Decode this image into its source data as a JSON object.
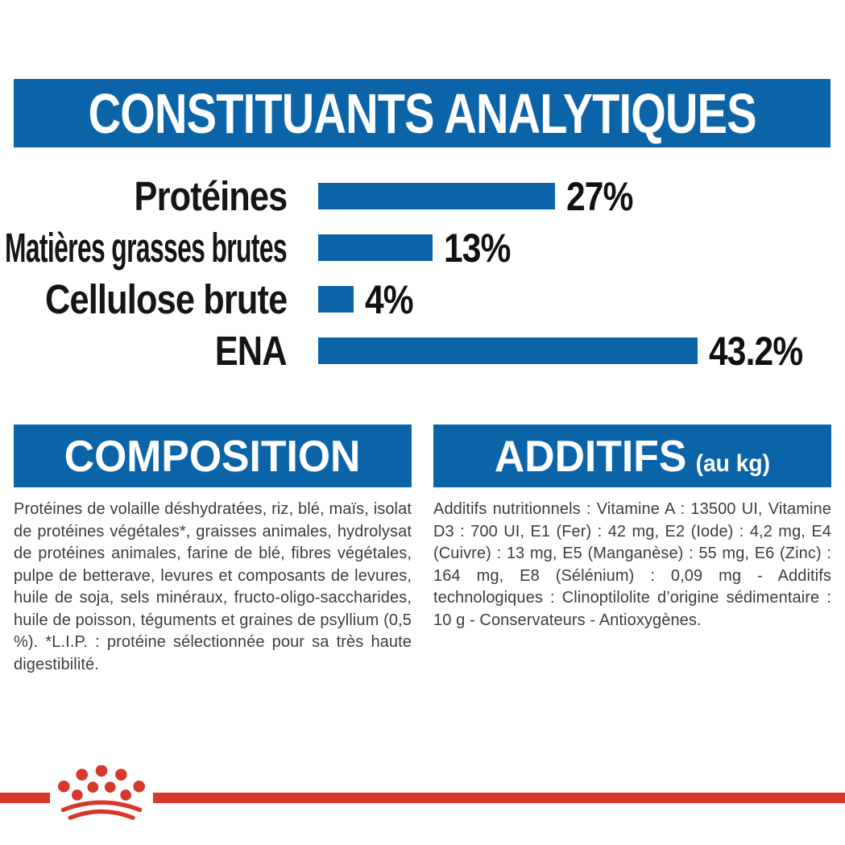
{
  "page": {
    "background": "#ffffff",
    "accent_blue": "#0c64a8",
    "accent_red": "#d7382c",
    "text_color": "#3d3d3d"
  },
  "analytics": {
    "title": "CONSTITUANTS ANALYTIQUES"
  },
  "chart_data": {
    "type": "bar",
    "orientation": "horizontal",
    "title": "CONSTITUANTS ANALYTIQUES",
    "categories": [
      "Protéines",
      "Matières grasses brutes",
      "Cellulose brute",
      "ENA"
    ],
    "values": [
      27,
      13,
      4,
      43.2
    ],
    "value_labels": [
      "27%",
      "13%",
      "4%",
      "43.2%"
    ],
    "unit": "%",
    "xlim": [
      0,
      45
    ],
    "bar_color": "#0c64a8",
    "grid": false,
    "legend": false
  },
  "composition": {
    "title": "COMPOSITION",
    "body": "Protéines de volaille déshydratées, riz, blé, maïs, isolat de protéines végétales*, graisses animales, hydrolysat de protéines animales, farine de blé, fibres végétales, pulpe de betterave, levures et composants de levures, huile de soja, sels minéraux, fructo-oligo-saccharides, huile de poisson, téguments et graines de psyllium (0,5 %). *L.I.P. : protéine sélectionnée pour sa très haute digestibilité."
  },
  "additifs": {
    "title": "ADDITIFS",
    "subtitle": "(au kg)",
    "body": "Additifs nutritionnels : Vitamine A : 13500 UI, Vitamine D3 : 700 UI, E1 (Fer) : 42 mg, E2 (Iode) : 4,2 mg, E4 (Cuivre) : 13 mg, E5 (Manganèse) : 55 mg, E6 (Zinc) : 164 mg, E8 (Sélénium) : 0,09 mg - Additifs technologiques : Clinoptilolite d’origine sédimentaire : 10 g - Conservateurs - Antioxygènes."
  },
  "footer": {
    "brand_logo": "royal-canin-crown-logo"
  }
}
